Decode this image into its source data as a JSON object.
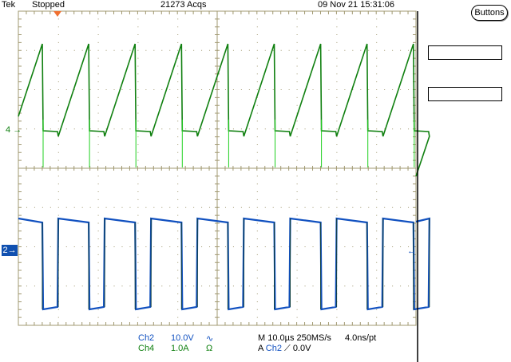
{
  "header": {
    "brand": "Tek",
    "status": "Stopped",
    "acquisitions": "21273 Acqs",
    "datetime": "09 Nov 21 15:31:06"
  },
  "side_panel": {
    "buttons_label": "Buttons",
    "field1": "",
    "field2": ""
  },
  "markers": {
    "ch4_ref": "4",
    "ch2_ref": "2"
  },
  "channels": [
    {
      "name": "Ch2",
      "scale": "10.0V",
      "coupling_symbol": "∿",
      "color": "#1050c0"
    },
    {
      "name": "Ch4",
      "scale": "1.0A",
      "coupling_symbol": "Ω",
      "color": "#108010"
    }
  ],
  "timebase": {
    "label": "M 10.0µs 250MS/s",
    "resolution": "4.0ns/pt"
  },
  "trigger": {
    "prefix": "A",
    "source": "Ch2",
    "slope_symbol": "⟋",
    "level": "0.0V"
  },
  "colors": {
    "graticule": "#a09870",
    "ch2": "#1050c0",
    "ch4": "#108010",
    "trigger_marker": "#f07030"
  }
}
